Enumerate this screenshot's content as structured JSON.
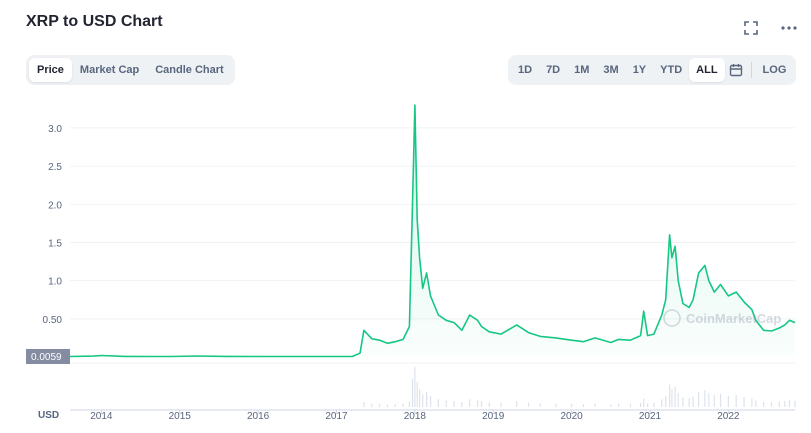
{
  "header": {
    "title": "XRP to USD Chart"
  },
  "icons": {
    "expand": "expand-icon",
    "more": "more-icon",
    "calendar": "calendar-icon"
  },
  "tabs": [
    {
      "label": "Price",
      "active": true
    },
    {
      "label": "Market Cap",
      "active": false
    },
    {
      "label": "Candle Chart",
      "active": false
    }
  ],
  "ranges": [
    {
      "label": "1D",
      "active": false
    },
    {
      "label": "7D",
      "active": false
    },
    {
      "label": "1M",
      "active": false
    },
    {
      "label": "3M",
      "active": false
    },
    {
      "label": "1Y",
      "active": false
    },
    {
      "label": "YTD",
      "active": false
    },
    {
      "label": "ALL",
      "active": true
    }
  ],
  "log_label": "LOG",
  "colors": {
    "line": "#16c784",
    "area": "#16c784",
    "grid": "#eff2f5",
    "price_tag": "#858ca2",
    "text_muted": "#58667e"
  },
  "chart_data": {
    "type": "area",
    "watermark": "CoinMarketCap",
    "currency_label": "USD",
    "current_price_label": "0.0059",
    "y_tick_labels": [
      "0.50",
      "1.0",
      "1.5",
      "2.0",
      "2.5",
      "3.0"
    ],
    "y_tick_values": [
      0.5,
      1.0,
      1.5,
      2.0,
      2.5,
      3.0
    ],
    "x_tick_labels": [
      "2014",
      "2015",
      "2016",
      "2017",
      "2018",
      "2019",
      "2020",
      "2021",
      "2022"
    ],
    "x_tick_values": [
      2014,
      2015,
      2016,
      2017,
      2018,
      2019,
      2020,
      2021,
      2022
    ],
    "xlim": [
      2013.6,
      2022.85
    ],
    "ylim": [
      0,
      3.3
    ],
    "series": [
      {
        "x": [
          2013.6,
          2013.9,
          2014.0,
          2014.3,
          2014.6,
          2014.9,
          2015.2,
          2015.6,
          2016.0,
          2016.5,
          2017.0,
          2017.2,
          2017.3,
          2017.35,
          2017.45,
          2017.55,
          2017.65,
          2017.75,
          2017.85,
          2017.93,
          2017.97,
          2018.0,
          2018.03,
          2018.06,
          2018.1,
          2018.15,
          2018.2,
          2018.3,
          2018.4,
          2018.5,
          2018.6,
          2018.7,
          2018.8,
          2018.85,
          2018.95,
          2019.1,
          2019.3,
          2019.45,
          2019.6,
          2019.8,
          2020.0,
          2020.15,
          2020.3,
          2020.5,
          2020.6,
          2020.75,
          2020.88,
          2020.92,
          2020.97,
          2021.05,
          2021.15,
          2021.2,
          2021.25,
          2021.28,
          2021.32,
          2021.36,
          2021.42,
          2021.5,
          2021.55,
          2021.62,
          2021.7,
          2021.75,
          2021.82,
          2021.9,
          2022.0,
          2022.1,
          2022.2,
          2022.3,
          2022.35,
          2022.45,
          2022.55,
          2022.65,
          2022.72,
          2022.78,
          2022.85
        ],
        "values": [
          0.006,
          0.012,
          0.02,
          0.008,
          0.006,
          0.006,
          0.013,
          0.008,
          0.006,
          0.006,
          0.006,
          0.006,
          0.05,
          0.35,
          0.24,
          0.22,
          0.18,
          0.2,
          0.23,
          0.4,
          2.0,
          3.3,
          1.8,
          1.3,
          0.9,
          1.1,
          0.8,
          0.55,
          0.48,
          0.45,
          0.35,
          0.55,
          0.48,
          0.4,
          0.33,
          0.3,
          0.42,
          0.32,
          0.27,
          0.25,
          0.22,
          0.2,
          0.25,
          0.19,
          0.23,
          0.22,
          0.28,
          0.6,
          0.28,
          0.3,
          0.55,
          0.75,
          1.6,
          1.3,
          1.45,
          1.0,
          0.7,
          0.65,
          0.75,
          1.1,
          1.2,
          1.0,
          0.85,
          0.95,
          0.8,
          0.85,
          0.72,
          0.62,
          0.48,
          0.35,
          0.34,
          0.38,
          0.42,
          0.48,
          0.45
        ]
      }
    ],
    "grid": true
  }
}
